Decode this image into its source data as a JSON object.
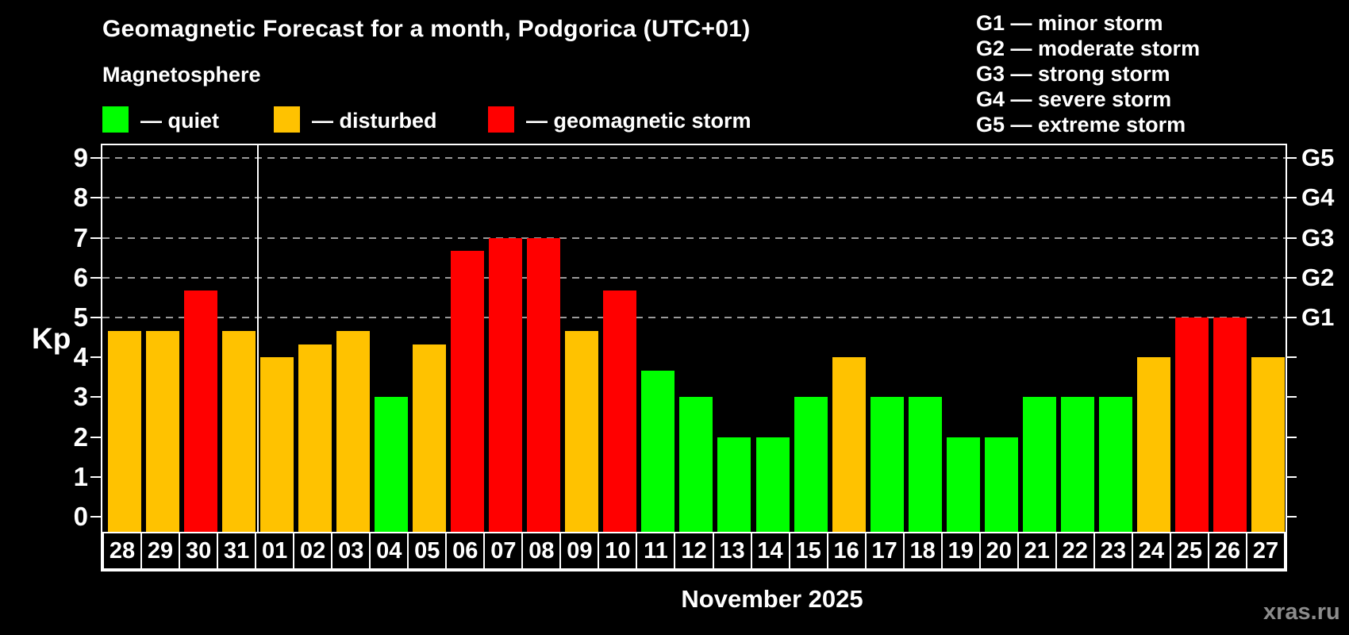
{
  "page": {
    "title": "Geomagnetic Forecast for a month, Podgorica (UTC+01)",
    "subtitle": "Magnetosphere",
    "month_label": "November 2025",
    "watermark": "xras.ru"
  },
  "legend": {
    "items": [
      {
        "key": "quiet",
        "label": "— quiet"
      },
      {
        "key": "disturbed",
        "label": "— disturbed"
      },
      {
        "key": "storm",
        "label": "— geomagnetic storm"
      }
    ]
  },
  "g_legend": {
    "lines": [
      "G1 — minor storm",
      "G2 — moderate storm",
      "G3 — strong storm",
      "G4 — severe storm",
      "G5 — extreme storm"
    ]
  },
  "chart_data": {
    "type": "bar",
    "title": "Geomagnetic Forecast for a month, Podgorica (UTC+01)",
    "ylabel": "Kp",
    "xlabel": "November 2025",
    "ylim": [
      0,
      9
    ],
    "yticks": [
      0,
      1,
      2,
      3,
      4,
      5,
      6,
      7,
      8,
      9
    ],
    "gridlines": [
      5,
      6,
      7,
      8,
      9
    ],
    "grid": "dashed, storm levels only",
    "legend_position": "top",
    "right_axis": {
      "levels": [
        5,
        6,
        7,
        8,
        9
      ],
      "labels": [
        "G1",
        "G2",
        "G3",
        "G4",
        "G5"
      ]
    },
    "categories": [
      "28",
      "29",
      "30",
      "31",
      "01",
      "02",
      "03",
      "04",
      "05",
      "06",
      "07",
      "08",
      "09",
      "10",
      "11",
      "12",
      "13",
      "14",
      "15",
      "16",
      "17",
      "18",
      "19",
      "20",
      "21",
      "22",
      "23",
      "24",
      "25",
      "26",
      "27"
    ],
    "values": [
      4.67,
      4.67,
      5.67,
      4.67,
      4,
      4.33,
      4.67,
      3,
      4.33,
      6.67,
      7,
      7,
      4.67,
      5.67,
      3.67,
      3,
      2,
      2,
      3,
      4,
      3,
      3,
      2,
      2,
      3,
      3,
      3,
      4,
      5,
      5,
      4
    ],
    "statuses": [
      "disturbed",
      "disturbed",
      "storm",
      "disturbed",
      "disturbed",
      "disturbed",
      "disturbed",
      "quiet",
      "disturbed",
      "storm",
      "storm",
      "storm",
      "disturbed",
      "storm",
      "quiet",
      "quiet",
      "quiet",
      "quiet",
      "quiet",
      "disturbed",
      "quiet",
      "quiet",
      "quiet",
      "quiet",
      "quiet",
      "quiet",
      "quiet",
      "disturbed",
      "storm",
      "storm",
      "disturbed"
    ],
    "month_separator_after_index": 3
  },
  "colors": {
    "quiet": "#00ff00",
    "disturbed": "#ffc200",
    "storm": "#ff0000",
    "background": "#000000",
    "grid": "#9a9a9a",
    "axis": "#ffffff",
    "text": "#ffffff",
    "watermark": "#8c8c8c"
  }
}
